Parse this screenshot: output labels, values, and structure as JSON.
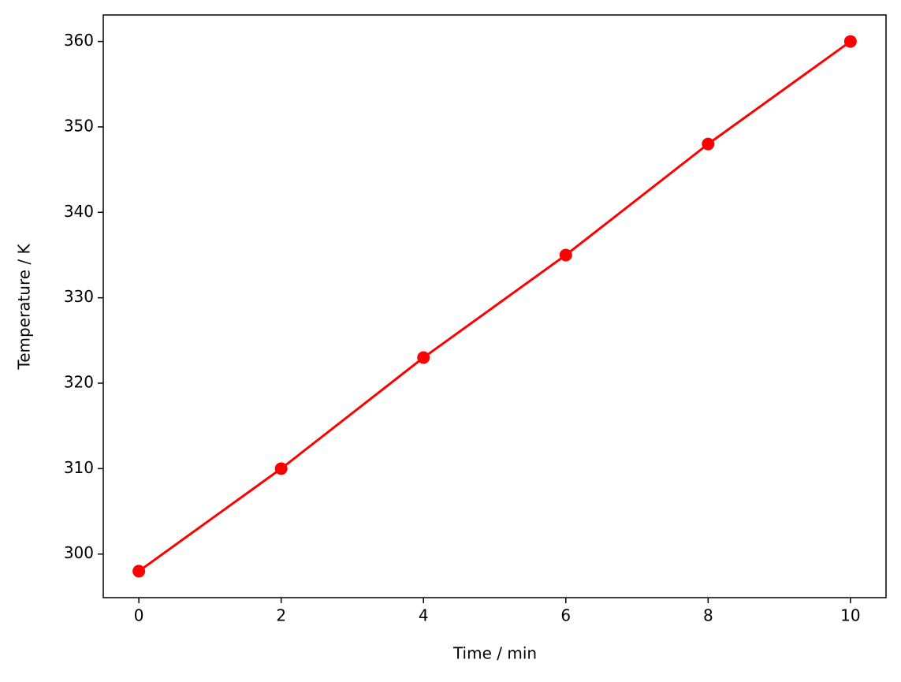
{
  "chart_data": {
    "type": "line",
    "x": [
      0,
      2,
      4,
      6,
      8,
      10
    ],
    "values": [
      298,
      310,
      323,
      335,
      348,
      360
    ],
    "color": "#ff0000",
    "x_label": "Time / min",
    "y_label": "Temperature / K",
    "xlim": [
      -0.5,
      10.5
    ],
    "xticks": [
      0,
      2,
      4,
      6,
      8,
      10
    ],
    "ylim": [
      294.9,
      363.1
    ],
    "yticks": [
      300,
      310,
      320,
      330,
      340,
      350,
      360
    ],
    "grid": false,
    "markers": true
  }
}
